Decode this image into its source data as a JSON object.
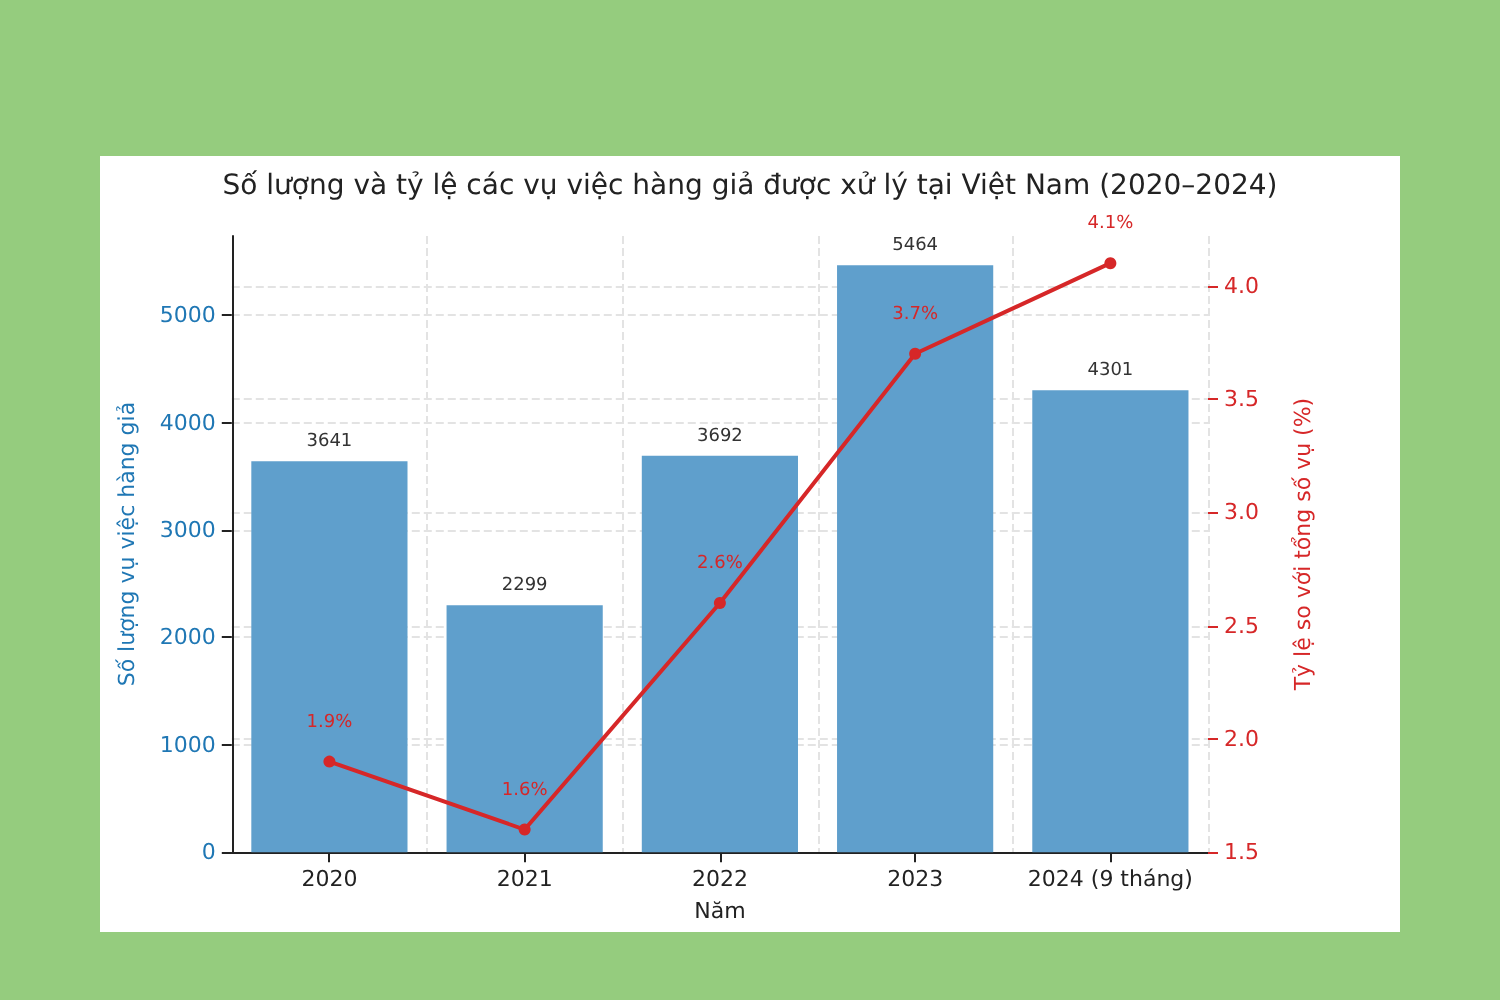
{
  "chart_data": {
    "type": "bar",
    "title": "Số lượng và tỷ lệ các vụ việc hàng giả được xử lý tại Việt Nam (2020–2024)",
    "xlabel": "Năm",
    "ylabel": "Số lượng vụ việc hàng giả",
    "y2label": "Tỷ lệ so với tổng số vụ (%)",
    "categories": [
      "2020",
      "2021",
      "2022",
      "2023",
      "2024 (9 tháng)"
    ],
    "series": [
      {
        "color": "#5f9fcc",
        "values": [
          3641,
          2299,
          3692,
          5464,
          4301
        ],
        "value_labels": [
          "3641",
          "2299",
          "3692",
          "5464",
          "4301"
        ]
      },
      {
        "type": "line",
        "axis": "y2",
        "color": "#d62728",
        "values": [
          1.9,
          1.6,
          2.6,
          3.7,
          4.1
        ],
        "value_labels": [
          "1.9%",
          "1.6%",
          "2.6%",
          "3.7%",
          "4.1%"
        ]
      }
    ],
    "ylim": [
      0,
      5737
    ],
    "yticks": [
      0,
      1000,
      2000,
      3000,
      4000,
      5000
    ],
    "y2lim": [
      1.5,
      4.22
    ],
    "y2ticks": [
      1.5,
      {
        "value": 2,
        "label": "2.0"
      },
      2.5,
      {
        "value": 3,
        "label": "3.0"
      },
      3.5,
      {
        "value": 4,
        "label": "4.0"
      }
    ],
    "grid": true,
    "marker": "circle",
    "line_style": "solid"
  }
}
